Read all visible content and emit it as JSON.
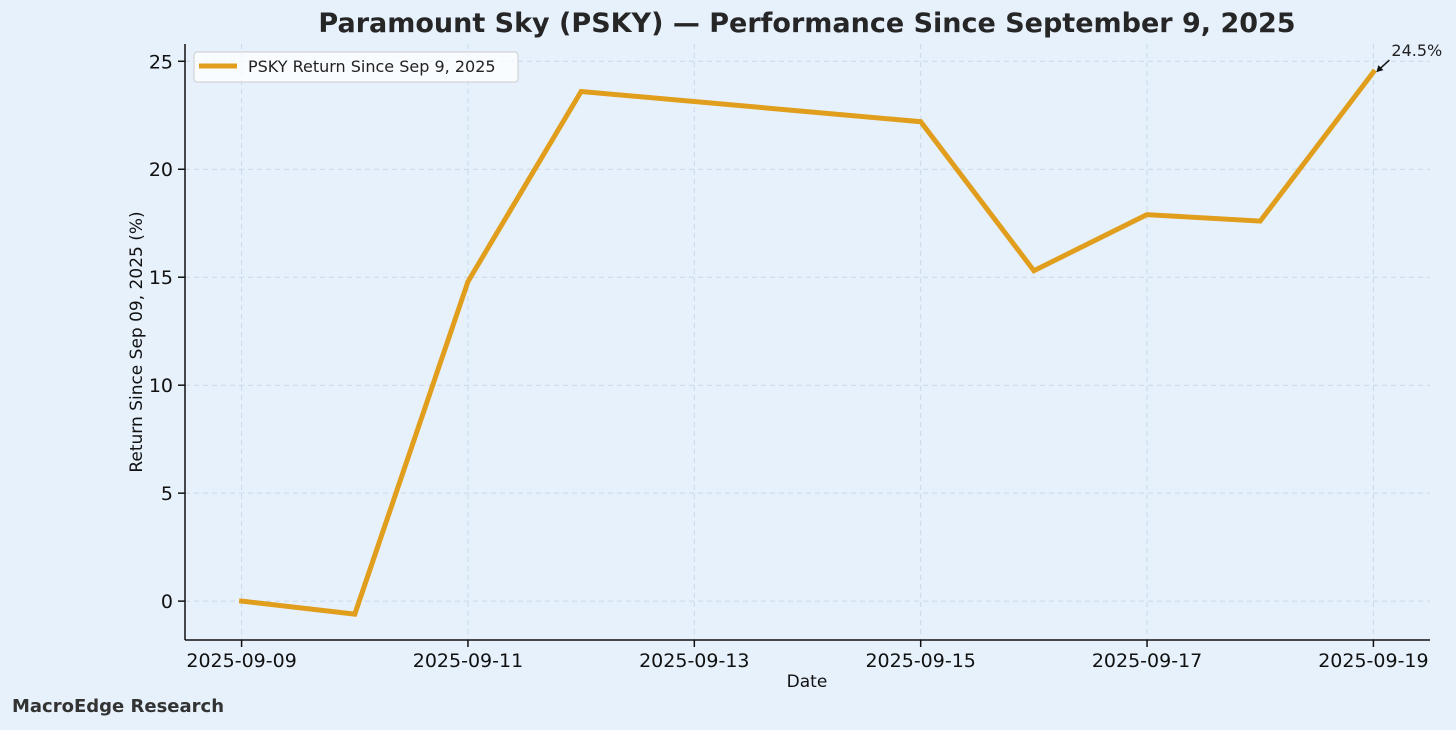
{
  "chart_data": {
    "type": "line",
    "title": "Paramount Sky (PSKY) — Performance Since September 9, 2025",
    "xlabel": "Date",
    "ylabel": "Return Since Sep 09, 2025 (%)",
    "x": [
      "2025-09-09",
      "2025-09-10",
      "2025-09-11",
      "2025-09-12",
      "2025-09-15",
      "2025-09-16",
      "2025-09-17",
      "2025-09-18",
      "2025-09-19"
    ],
    "x_ticks": [
      "2025-09-09",
      "2025-09-11",
      "2025-09-13",
      "2025-09-15",
      "2025-09-17",
      "2025-09-19"
    ],
    "y_ticks": [
      0,
      5,
      10,
      15,
      20,
      25
    ],
    "xlim": [
      "2025-09-08.5",
      "2025-09-19.5"
    ],
    "ylim": [
      -1.8,
      25.8
    ],
    "grid": true,
    "legend_position": "top-left",
    "series": [
      {
        "name": "PSKY Return Since Sep 9, 2025",
        "color": "#e09e1c",
        "values": [
          0.0,
          -0.6,
          14.8,
          23.6,
          22.2,
          15.3,
          17.9,
          17.6,
          24.5
        ]
      }
    ],
    "annotations": [
      {
        "text": "24.5%",
        "x": "2025-09-19",
        "y": 24.5
      }
    ]
  },
  "footer": {
    "brand": "MacroEdge Research"
  }
}
